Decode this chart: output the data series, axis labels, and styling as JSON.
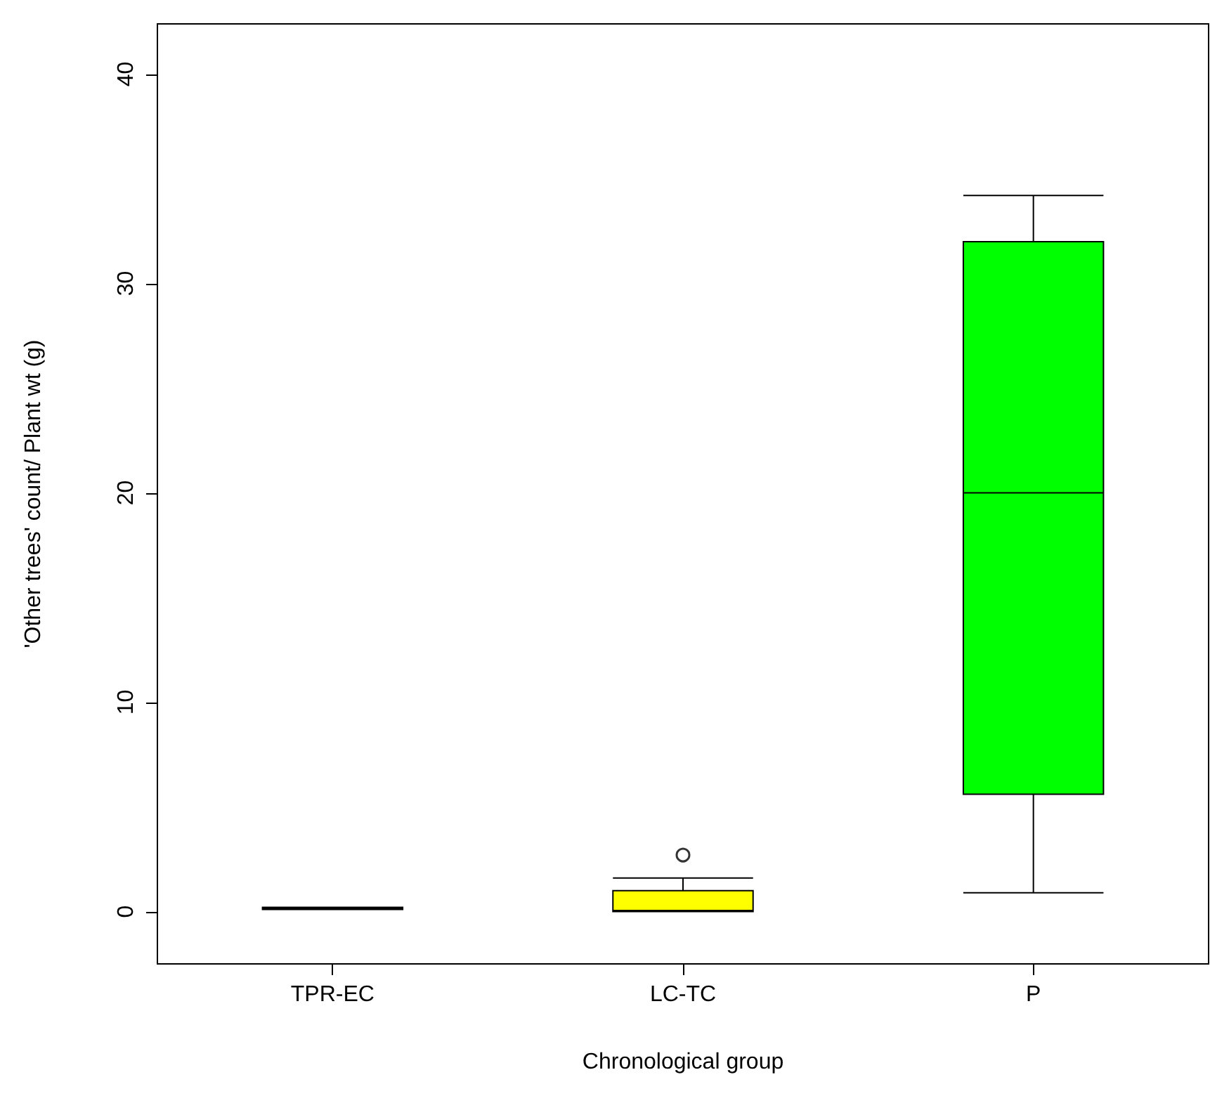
{
  "chart_data": {
    "type": "box",
    "xlabel": "Chronological group",
    "ylabel": "'Other trees' count/ Plant wt (g)",
    "categories": [
      "TPR-EC",
      "LC-TC",
      "P"
    ],
    "colors": [
      "#ffffff",
      "#ffff00",
      "#00ff00"
    ],
    "boxes": [
      {
        "low": 0.1,
        "q1": 0.1,
        "median": 0.15,
        "q3": 0.2,
        "high": 0.2
      },
      {
        "low": 0,
        "q1": 0,
        "median": 0.05,
        "q3": 1.0,
        "high": 1.6,
        "outliers": [
          2.7
        ]
      },
      {
        "low": 0.9,
        "q1": 5.6,
        "median": 20,
        "q3": 32,
        "high": 34.2
      }
    ],
    "ylim": [
      -2.5,
      42.4
    ],
    "yticks": [
      0,
      10,
      20,
      30,
      40
    ]
  }
}
